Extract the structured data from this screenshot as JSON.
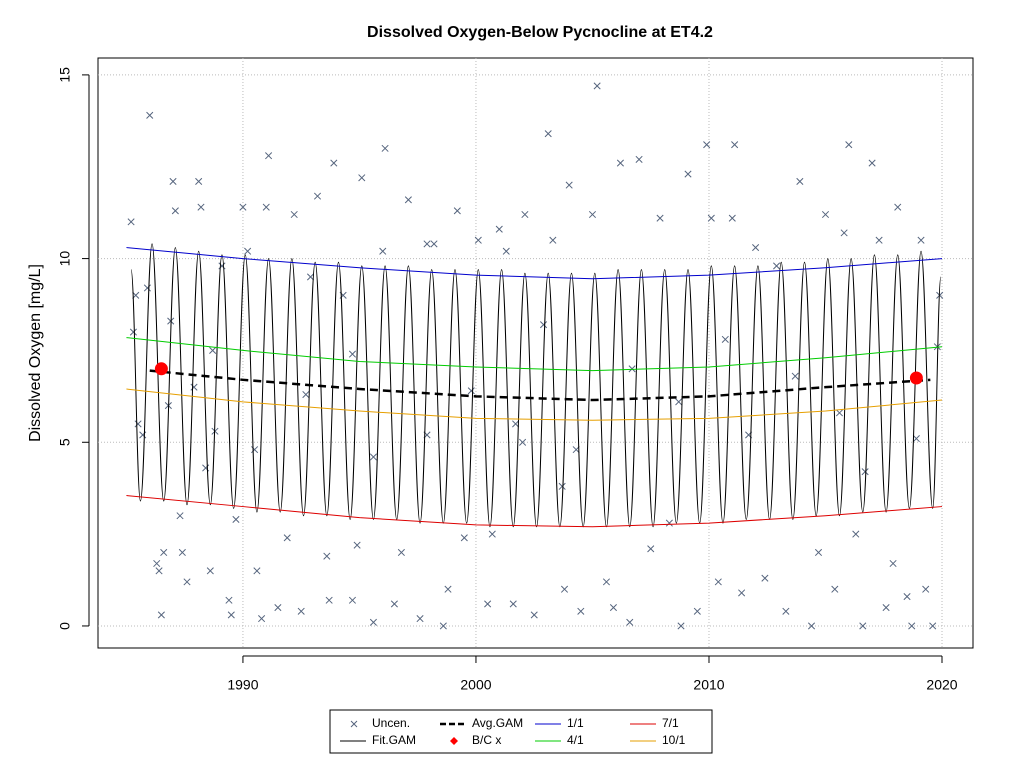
{
  "chart_data": {
    "type": "line",
    "title": "Dissolved Oxygen-Below Pycnocline at ET4.2",
    "y_label": "Dissolved Oxygen [mg/L]",
    "xlim": [
      1983.78,
      2021.33
    ],
    "ylim": [
      -0.6,
      15.46
    ],
    "xticks": [
      1990,
      2000,
      2010,
      2020
    ],
    "yticks": [
      0,
      5,
      10,
      15
    ],
    "grid": true,
    "series": [
      {
        "name": "Uncen.",
        "color": "#56657e",
        "style": "cross",
        "x": [
          1985.2,
          1985.3,
          1985.4,
          1985.5,
          1985.7,
          1985.9,
          1986.0,
          1986.3,
          1986.4,
          1986.5,
          1986.6,
          1986.9,
          1987.0,
          1987.1,
          1987.3,
          1987.4,
          1987.6,
          1987.9,
          1988.1,
          1988.2,
          1988.4,
          1988.6,
          1988.8,
          1989.1,
          1989.4,
          1989.5,
          1989.7,
          1990.0,
          1990.2,
          1990.6,
          1990.8,
          1991.0,
          1991.1,
          1991.5,
          1991.9,
          1992.2,
          1992.5,
          1992.9,
          1993.2,
          1993.6,
          1993.7,
          1993.9,
          1994.3,
          1994.7,
          1994.9,
          1995.1,
          1995.6,
          1996.0,
          1996.1,
          1996.5,
          1996.8,
          1997.1,
          1997.6,
          1997.9,
          1998.2,
          1998.6,
          1998.8,
          1999.2,
          1999.5,
          2000.1,
          2000.5,
          2000.7,
          2001.0,
          2001.3,
          2001.6,
          2002.0,
          2002.1,
          2002.5,
          2002.9,
          2003.1,
          2003.3,
          2003.8,
          2004.0,
          2004.5,
          2005.0,
          2005.2,
          2005.6,
          2005.9,
          2006.2,
          2006.6,
          2007.0,
          2007.5,
          2007.9,
          2008.3,
          2008.8,
          2009.1,
          2009.5,
          2009.9,
          2010.1,
          2010.4,
          2011.0,
          2011.1,
          2011.4,
          2012.0,
          2012.4,
          2012.9,
          2013.3,
          2013.9,
          2014.4,
          2014.7,
          2015.0,
          2015.4,
          2015.8,
          2016.0,
          2016.3,
          2016.6,
          2017.0,
          2017.3,
          2017.6,
          2017.9,
          2018.1,
          2018.5,
          2018.7,
          2019.1,
          2019.3,
          2019.6,
          2019.8,
          2019.9,
          1988.7,
          1992.7,
          1995.6,
          1997.9,
          1999.8,
          2001.7,
          2004.3,
          2006.7,
          2008.7,
          2011.7,
          2013.7,
          2016.7,
          2018.9,
          1986.8,
          1990.5,
          1994.7,
          2003.7,
          2010.7,
          2015.6
        ],
        "values": [
          11.0,
          8.0,
          9.0,
          5.5,
          5.2,
          9.2,
          13.9,
          1.7,
          1.5,
          0.3,
          2.0,
          8.3,
          12.1,
          11.3,
          3.0,
          2.0,
          1.2,
          6.5,
          12.1,
          11.4,
          4.3,
          1.5,
          5.3,
          9.8,
          0.7,
          0.3,
          2.9,
          11.4,
          10.2,
          1.5,
          0.2,
          11.4,
          12.8,
          0.5,
          2.4,
          11.2,
          0.4,
          9.5,
          11.7,
          1.9,
          0.7,
          12.6,
          9.0,
          0.7,
          2.2,
          12.2,
          0.1,
          10.2,
          13.0,
          0.6,
          2.0,
          11.6,
          0.2,
          10.4,
          10.4,
          0.0,
          1.0,
          11.3,
          2.4,
          10.5,
          0.6,
          2.5,
          10.8,
          10.2,
          0.6,
          5.0,
          11.2,
          0.3,
          8.2,
          13.4,
          10.5,
          1.0,
          12.0,
          0.4,
          11.2,
          14.7,
          1.2,
          0.5,
          12.6,
          0.1,
          12.7,
          2.1,
          11.1,
          2.8,
          0.0,
          12.3,
          0.4,
          13.1,
          11.1,
          1.2,
          11.1,
          13.1,
          0.9,
          10.3,
          1.3,
          9.8,
          0.4,
          12.1,
          0.0,
          2.0,
          11.2,
          1.0,
          10.7,
          13.1,
          2.5,
          0.0,
          12.6,
          10.5,
          0.5,
          1.7,
          11.4,
          0.8,
          0.0,
          10.5,
          1.0,
          0.0,
          7.6,
          9.0,
          7.5,
          6.3,
          4.6,
          5.2,
          6.4,
          5.5,
          4.8,
          7.0,
          6.1,
          5.2,
          6.8,
          4.2,
          5.1,
          6.0,
          4.8,
          7.4,
          3.8,
          7.8,
          5.8
        ]
      },
      {
        "name": "Fit.GAM",
        "color": "#000000",
        "style": "smooth",
        "x": [
          1985.2,
          1985.6,
          1986.1,
          1986.6,
          1987.1,
          1987.6,
          1988.1,
          1988.6,
          1989.1,
          1989.6,
          1990.1,
          1990.6,
          1991.1,
          1991.6,
          1992.1,
          1992.6,
          1993.1,
          1993.6,
          1994.1,
          1994.6,
          1995.1,
          1995.6,
          1996.1,
          1996.6,
          1997.1,
          1997.6,
          1998.1,
          1998.6,
          1999.1,
          1999.6,
          2000.1,
          2000.6,
          2001.1,
          2001.6,
          2002.1,
          2002.6,
          2003.1,
          2003.6,
          2004.1,
          2004.6,
          2005.1,
          2005.6,
          2006.1,
          2006.6,
          2007.1,
          2007.6,
          2008.1,
          2008.6,
          2009.1,
          2009.6,
          2010.1,
          2010.6,
          2011.1,
          2011.6,
          2012.1,
          2012.6,
          2013.1,
          2013.6,
          2014.1,
          2014.6,
          2015.1,
          2015.6,
          2016.1,
          2016.6,
          2017.1,
          2017.6,
          2018.1,
          2018.6,
          2019.1,
          2019.6,
          2019.95
        ],
        "values": [
          9.7,
          3.4,
          10.4,
          3.4,
          10.3,
          3.3,
          10.2,
          3.3,
          10.1,
          3.2,
          10.1,
          3.1,
          10.0,
          3.1,
          10.0,
          3.0,
          9.9,
          3.0,
          9.9,
          2.9,
          9.8,
          2.9,
          9.8,
          2.9,
          9.8,
          2.8,
          9.7,
          2.8,
          9.7,
          2.8,
          9.7,
          2.7,
          9.7,
          2.7,
          9.6,
          2.7,
          9.6,
          2.7,
          9.6,
          2.7,
          9.6,
          2.7,
          9.7,
          2.7,
          9.7,
          2.7,
          9.7,
          2.8,
          9.7,
          2.8,
          9.8,
          2.8,
          9.8,
          2.9,
          9.8,
          2.9,
          9.9,
          2.9,
          9.9,
          3.0,
          10.0,
          3.0,
          10.0,
          3.1,
          10.1,
          3.1,
          10.1,
          3.2,
          10.2,
          3.2,
          9.5
        ]
      },
      {
        "name": "Avg.GAM",
        "color": "#000000",
        "style": "dashed",
        "x": [
          1986,
          1990,
          1995,
          2000,
          2005,
          2010,
          2015,
          2019.5
        ],
        "values": [
          6.95,
          6.7,
          6.45,
          6.25,
          6.15,
          6.25,
          6.5,
          6.7
        ]
      },
      {
        "name": "B/C x",
        "color": "#ff0000",
        "style": "dot",
        "x": [
          1986.5,
          2018.9
        ],
        "values": [
          7.0,
          6.75
        ]
      },
      {
        "name": "1/1",
        "color": "#0000cc",
        "style": "line",
        "x": [
          1985,
          1990,
          1995,
          2000,
          2005,
          2010,
          2015,
          2020
        ],
        "values": [
          10.3,
          10.0,
          9.75,
          9.55,
          9.45,
          9.55,
          9.75,
          10.0
        ]
      },
      {
        "name": "4/1",
        "color": "#00cc00",
        "style": "line",
        "x": [
          1985,
          1990,
          1995,
          2000,
          2005,
          2010,
          2015,
          2020
        ],
        "values": [
          7.85,
          7.5,
          7.2,
          7.05,
          6.95,
          7.05,
          7.3,
          7.6
        ]
      },
      {
        "name": "7/1",
        "color": "#dd0000",
        "style": "line",
        "x": [
          1985,
          1990,
          1995,
          2000,
          2005,
          2010,
          2015,
          2020
        ],
        "values": [
          3.55,
          3.25,
          2.95,
          2.75,
          2.7,
          2.8,
          3.0,
          3.25
        ]
      },
      {
        "name": "10/1",
        "color": "#e69f00",
        "style": "line",
        "x": [
          1985,
          1990,
          1995,
          2000,
          2005,
          2010,
          2015,
          2020
        ],
        "values": [
          6.45,
          6.1,
          5.85,
          5.65,
          5.6,
          5.65,
          5.85,
          6.15
        ]
      }
    ]
  }
}
